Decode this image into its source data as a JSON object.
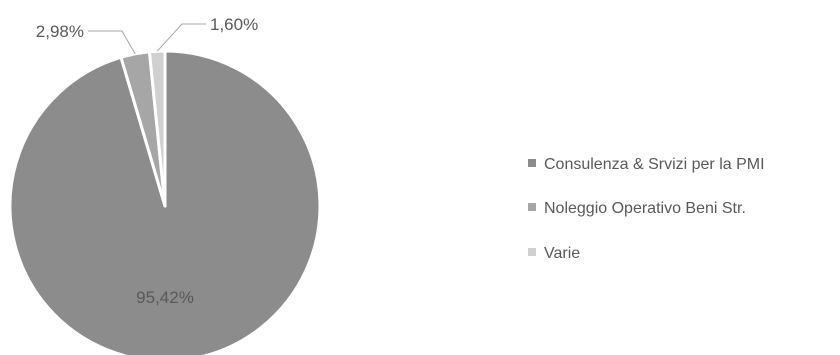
{
  "chart_data": {
    "type": "pie",
    "title": "",
    "legend_position": "right",
    "slices": [
      {
        "label": "Consulenza & Srvizi per la PMI",
        "value": 95.42,
        "value_label": "95,42%",
        "color": "#8c8c8c"
      },
      {
        "label": "Noleggio Operativo Beni Str.",
        "value": 2.98,
        "value_label": "2,98%",
        "color": "#a6a6a6"
      },
      {
        "label": "Varie",
        "value": 1.6,
        "value_label": "1,60%",
        "color": "#d0d0d0"
      }
    ]
  }
}
